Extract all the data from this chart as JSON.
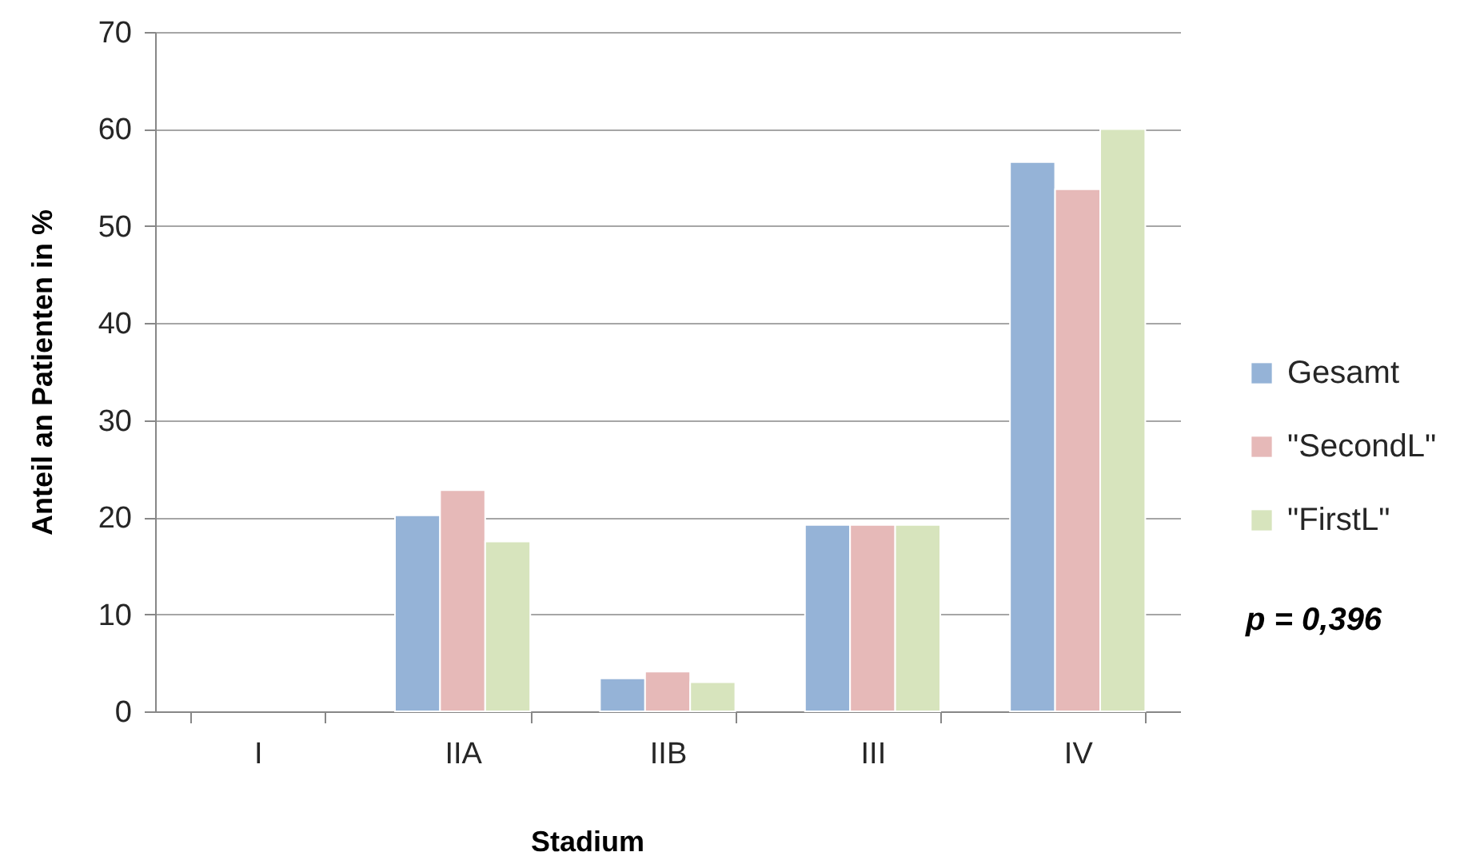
{
  "chart_data": {
    "type": "bar",
    "xlabel": "Stadium",
    "ylabel": "Anteil an Patienten in %",
    "categories": [
      "I",
      "IIA",
      "IIB",
      "III",
      "IV"
    ],
    "series": [
      {
        "name": "Gesamt",
        "color": "#95b3d7",
        "values": [
          null,
          20.2,
          3.4,
          19.2,
          56.6
        ]
      },
      {
        "name": "\"SecondL\"",
        "color": "#e6b9b8",
        "values": [
          null,
          22.8,
          4.1,
          19.2,
          53.8
        ]
      },
      {
        "name": "\"FirstL\"",
        "color": "#d7e4bd",
        "values": [
          null,
          17.5,
          3.0,
          19.2,
          60.0
        ]
      }
    ],
    "ylim": [
      0,
      70
    ],
    "yticks": [
      0,
      10,
      20,
      30,
      40,
      50,
      60,
      70
    ],
    "grid": "y",
    "legend": "right",
    "annotations": [
      "p = 0,396"
    ]
  }
}
